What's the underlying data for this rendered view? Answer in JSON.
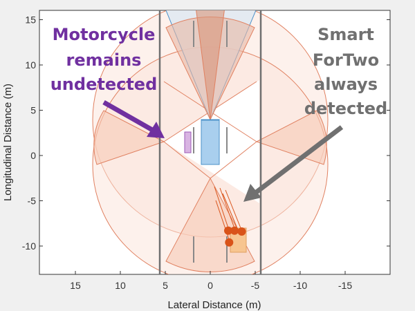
{
  "chart_data": {
    "type": "scatter",
    "title": "",
    "xlabel": "Lateral Distance (m)",
    "ylabel": "Longitudinal Distance (m)",
    "xlim": [
      19,
      -20
    ],
    "ylim": [
      -13,
      16
    ],
    "x_reversed": true,
    "grid": false,
    "xticks": [
      "15",
      "10",
      "5",
      "0",
      "-5",
      "-10",
      "-15"
    ],
    "yticks": [
      "15",
      "10",
      "5",
      "0",
      "-5",
      "-10"
    ],
    "lane_markings_lateral": [
      5.6,
      -5.6
    ],
    "ego_vehicle": {
      "lateral": [
        -1,
        1
      ],
      "longitudinal": [
        -1,
        3.8
      ],
      "color": "#a9cfee"
    },
    "motorcycle": {
      "lateral": [
        2.2,
        2.9
      ],
      "longitudinal": [
        0.3,
        2.6
      ],
      "color": "#d8b4e2"
    },
    "smart_fortwo": {
      "lateral": [
        -2.2,
        -4
      ],
      "longitudinal": [
        -10.7,
        -8
      ],
      "color": "#f7c590"
    },
    "detections": [
      {
        "x": -2,
        "y": -8.3
      },
      {
        "x": -2.7,
        "y": -8.3
      },
      {
        "x": -3.5,
        "y": -8.4
      },
      {
        "x": -2.1,
        "y": -9.6
      }
    ],
    "detection_color": "#d95319",
    "coverage_color": "#d95319"
  },
  "annotations": {
    "motorcycle": [
      "Motorcycle",
      "remains",
      "undetected"
    ],
    "smart": [
      "Smart",
      "ForTwo",
      "always",
      "detected"
    ],
    "motorcycle_color": "#7030a0",
    "smart_color": "#707070"
  }
}
